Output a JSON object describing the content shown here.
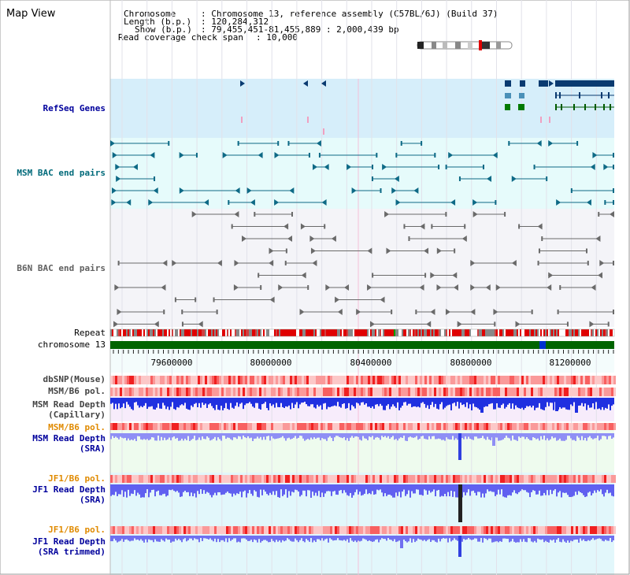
{
  "window": {
    "title": "Map View"
  },
  "info": {
    "chromosome_key": "Chromosome",
    "chromosome_value": ": Chromosome 13, reference assembly (C57BL/6J) (Build 37)",
    "length_key": "Length (b.p.)",
    "length_value": ": 120,284,312",
    "show_key": "Show (b.p.)",
    "show_value": ": 79,455,451-81,455,889 : 2,000,439 bp",
    "coverage_key": "Read coverage check span",
    "coverage_value": ": 10,000"
  },
  "tracks": {
    "refseq": "RefSeq Genes",
    "msm_bac": "MSM BAC end pairs",
    "b6n_bac": "B6N BAC end pairs",
    "repeat": "Repeat",
    "chromosome": "chromosome 13",
    "dbsnp": "dbSNP(Mouse)",
    "msm_b6_pol": "MSM/B6 pol.",
    "msm_depth_cap_1": "MSM Read Depth",
    "msm_depth_cap_2": "(Capillary)",
    "msm_b6_pol_2": "MSM/B6 pol.",
    "msm_depth_sra_1": "MSM Read Depth",
    "msm_depth_sra_2": "(SRA)",
    "jf1_b6_pol": "JF1/B6 pol.",
    "jf1_depth_sra_1": "JF1 Read Depth",
    "jf1_depth_sra_2": "(SRA)",
    "jf1_b6_pol_2": "JF1/B6 pol.",
    "jf1_depth_trim_1": "JF1 Read Depth",
    "jf1_depth_trim_2": "(SRA trimmed)"
  },
  "axis": {
    "ticks": [
      "79600000",
      "80000000",
      "80400000",
      "80800000",
      "81200000"
    ]
  },
  "colors": {
    "label_blue": "#00009c",
    "label_teal": "#006a7a",
    "label_gray": "#606060",
    "label_orange": "#e08a00",
    "refseq_bg": "#d6eefa",
    "msm_bac_bg": "#e6fbfb",
    "b6n_bac_bg": "#f4f4f8",
    "chromosome_green": "#006400"
  }
}
